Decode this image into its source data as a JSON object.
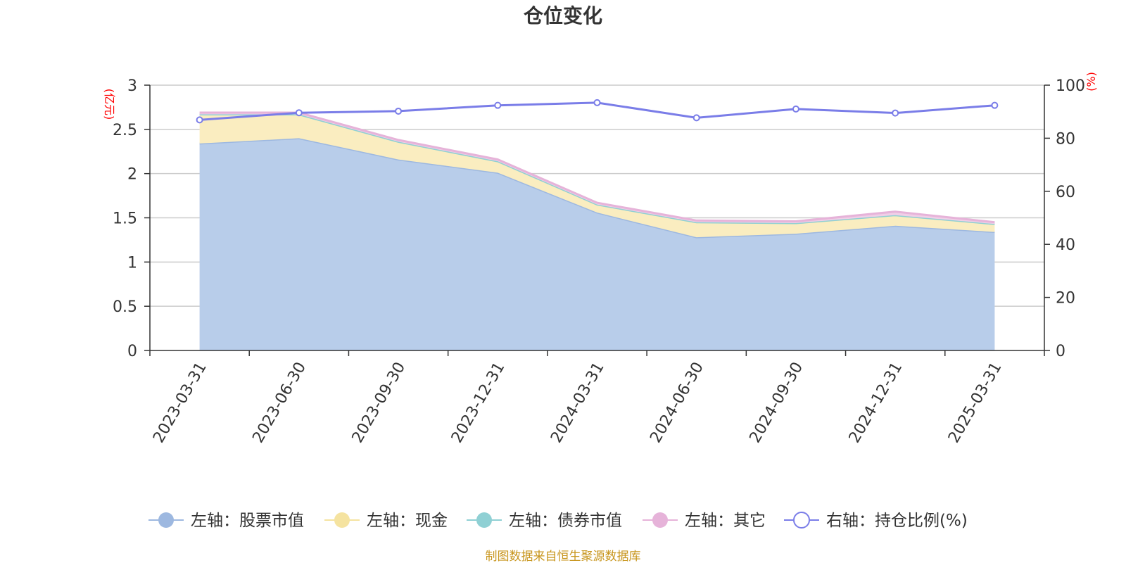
{
  "chart_data": {
    "type": "area",
    "title": "仓位变化",
    "categories": [
      "2023-03-31",
      "2023-06-30",
      "2023-09-30",
      "2023-12-31",
      "2024-03-31",
      "2024-06-30",
      "2024-09-30",
      "2024-12-31",
      "2025-03-31"
    ],
    "left_axis": {
      "unit": "(亿元)",
      "ylim": [
        0,
        3
      ],
      "ticks": [
        "0",
        "0.5",
        "1",
        "1.5",
        "2",
        "2.5",
        "3"
      ]
    },
    "right_axis": {
      "unit": "(%)",
      "ylim": [
        0,
        100
      ],
      "ticks": [
        "0",
        "20",
        "40",
        "60",
        "80",
        "100"
      ]
    },
    "series": [
      {
        "name": "左轴：股票市值",
        "axis": "left",
        "stacked": true,
        "color": "#9db8e0",
        "fill": "#b8cdea",
        "values": [
          2.34,
          2.4,
          2.16,
          2.01,
          1.56,
          1.28,
          1.32,
          1.41,
          1.34
        ]
      },
      {
        "name": "左轴：现金",
        "axis": "left",
        "stacked": true,
        "color": "#f5e3a0",
        "fill": "#faedc0",
        "values": [
          0.33,
          0.27,
          0.2,
          0.13,
          0.09,
          0.17,
          0.12,
          0.12,
          0.09
        ]
      },
      {
        "name": "左轴：债券市值",
        "axis": "left",
        "stacked": true,
        "color": "#8fd0d4",
        "fill": "#b9e3e5",
        "values": [
          0,
          0,
          0,
          0,
          0,
          0,
          0,
          0,
          0
        ]
      },
      {
        "name": "左轴：其它",
        "axis": "left",
        "stacked": true,
        "color": "#e6b3d9",
        "fill": "#f0cfe7",
        "values": [
          0.02,
          0.02,
          0.02,
          0.02,
          0.02,
          0.02,
          0.02,
          0.04,
          0.02
        ]
      },
      {
        "name": "右轴：持仓比例(%)",
        "axis": "right",
        "type": "line",
        "color": "#7a7de8",
        "values": [
          86.9,
          89.6,
          90.2,
          92.4,
          93.4,
          87.7,
          91.0,
          89.5,
          92.4
        ]
      }
    ],
    "grid": true,
    "legend_position": "bottom"
  },
  "source_note": "制图数据来自恒生聚源数据库"
}
